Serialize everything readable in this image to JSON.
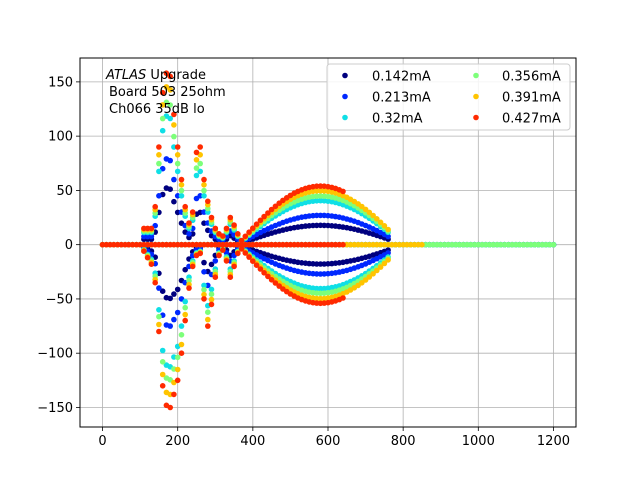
{
  "chart_data": {
    "type": "scatter",
    "title": "",
    "xlabel": "",
    "ylabel": "",
    "xlim": [
      -60,
      1260
    ],
    "ylim": [
      -168,
      172
    ],
    "xticks": [
      0,
      200,
      400,
      600,
      800,
      1000,
      1200
    ],
    "yticks": [
      -150,
      -100,
      -50,
      0,
      50,
      100,
      150
    ],
    "xtick_labels": [
      "0",
      "200",
      "400",
      "600",
      "800",
      "1000",
      "1200"
    ],
    "ytick_labels": [
      "−150",
      "−100",
      "−50",
      "0",
      "50",
      "100",
      "150"
    ],
    "grid": true,
    "legend_position": "top-right",
    "annotation": {
      "italic": "ATLAS",
      "line1_rest": " Upgrade",
      "line2": "Board 503 25ohm",
      "line3": "Ch066 35dB lo"
    },
    "series": [
      {
        "name": "0.142mA",
        "color": "#00007f",
        "x_end": 1200,
        "scale": 0.33
      },
      {
        "name": "0.213mA",
        "color": "#0028ff",
        "x_end": 1200,
        "scale": 0.5
      },
      {
        "name": "0.32mA",
        "color": "#0fdfe6",
        "x_end": 1200,
        "scale": 0.75
      },
      {
        "name": "0.356mA",
        "color": "#7dff7a",
        "x_end": 1200,
        "scale": 0.83
      },
      {
        "name": "0.391mA",
        "color": "#ffc400",
        "x_end": 850,
        "scale": 0.92
      },
      {
        "name": "0.427mA",
        "color": "#ff2a00",
        "x_end": 640,
        "scale": 1.0
      }
    ]
  }
}
